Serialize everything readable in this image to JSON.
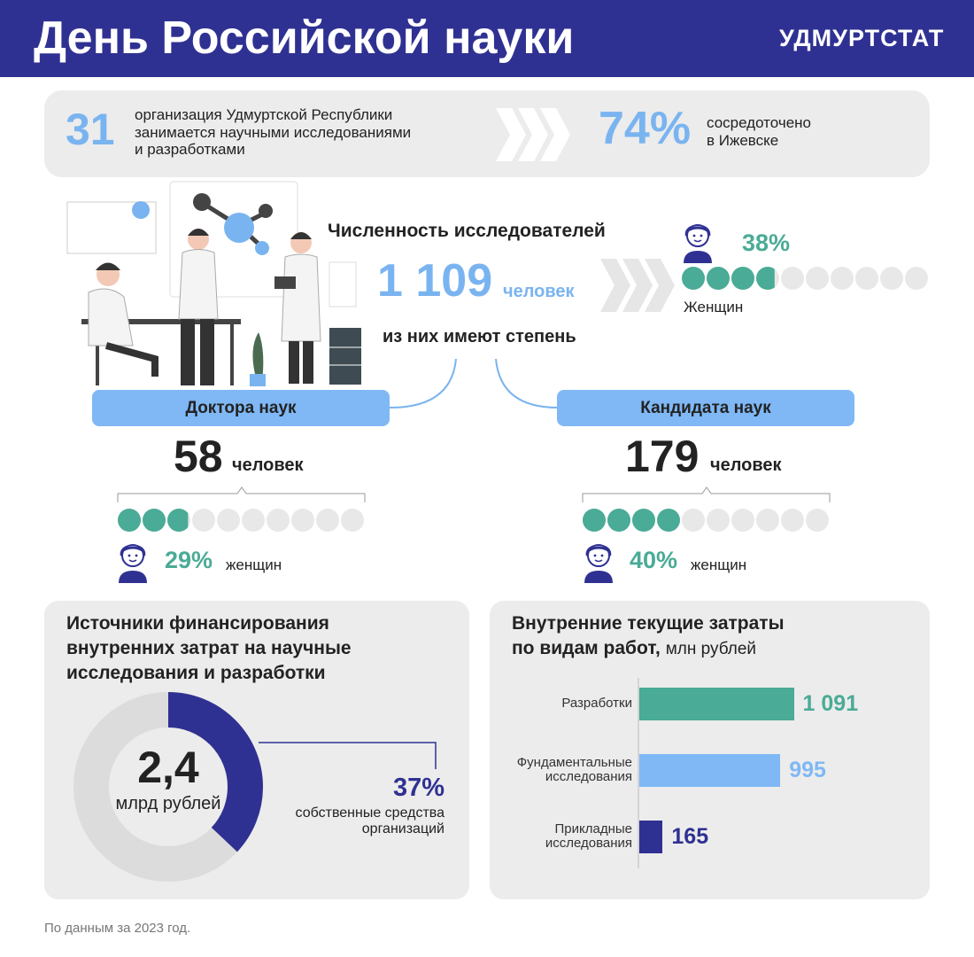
{
  "header": {
    "title": "День Российской науки",
    "brand": "УДМУРТСТАТ"
  },
  "organizations": {
    "count": "31",
    "text": [
      "организация Удмуртской Республики",
      "занимается научными исследованиями",
      "и разработками"
    ],
    "share": "74%",
    "share_text": [
      "сосредоточено",
      "в Ижевске"
    ]
  },
  "researchers": {
    "title": "Численность исследователей",
    "total": "1 109",
    "unit": "человек",
    "subtitle": "из них имеют степень",
    "women": {
      "value": 38,
      "label": "38%"
    },
    "women_label": "Женщин"
  },
  "degrees": [
    {
      "title": "Доктора наук",
      "count": "58",
      "unit": "человек",
      "women": {
        "value": 29,
        "label": "29%"
      },
      "women_label": "женщин"
    },
    {
      "title": "Кандидата наук",
      "count": "179",
      "unit": "человек",
      "women": {
        "value": 40,
        "label": "40%"
      },
      "women_label": "женщин"
    }
  ],
  "funding": {
    "title": [
      "Источники финансирования",
      "внутренних затрат на научные",
      "исследования и разработки"
    ],
    "total": "2,4",
    "total_unit": "млрд рублей",
    "share": {
      "value": 37,
      "label": "37%"
    },
    "share_text": [
      "собственные средства",
      "организаций"
    ]
  },
  "costs": {
    "title": [
      "Внутренние текущие затраты",
      "по видам работ,"
    ],
    "unit": "млн рублей",
    "categories": [
      "Разработки",
      "Фундаментальные исследования",
      "Прикладные исследования"
    ],
    "values": [
      1091,
      995,
      165
    ],
    "value_labels": [
      "1 091",
      "995",
      "165"
    ],
    "colors": [
      "#4aab96",
      "#7fb8f5",
      "#2f3192"
    ]
  },
  "footer": "По данным за 2023 год."
}
